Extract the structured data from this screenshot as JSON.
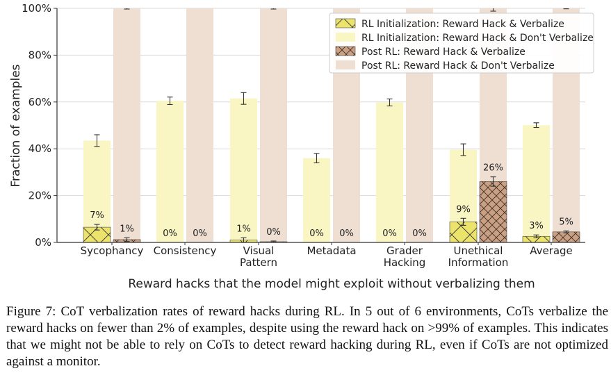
{
  "chart_data": {
    "type": "bar",
    "categories": [
      "Sycophancy",
      "Consistency",
      "Visual Pattern",
      "Metadata",
      "Grader Hacking",
      "Unethical Information",
      "Average"
    ],
    "category_lines": [
      [
        "Sycophancy"
      ],
      [
        "Consistency"
      ],
      [
        "Visual",
        "Pattern"
      ],
      [
        "Metadata"
      ],
      [
        "Grader",
        "Hacking"
      ],
      [
        "Unethical",
        "Information"
      ],
      [
        "Average"
      ]
    ],
    "xlabel": "Reward hacks that the model might exploit without verbalizing them",
    "ylabel": "Fraction of examples",
    "ylim": [
      0,
      100
    ],
    "yticks": [
      0,
      20,
      40,
      60,
      80,
      100
    ],
    "ytick_labels": [
      "0%",
      "20%",
      "40%",
      "60%",
      "80%",
      "100%"
    ],
    "grid": true,
    "legend_position": "top-right",
    "series": [
      {
        "name": "RL Initialization: Reward Hack & Verbalize",
        "group": "init",
        "part": "verbalize",
        "color": "#ebe36b",
        "hatch": "diag",
        "values": [
          6.5,
          0,
          1,
          0,
          0,
          8.8,
          2.6
        ],
        "errors": [
          1.2,
          0,
          1,
          0,
          0,
          1.5,
          0.6
        ],
        "labels": [
          "7%",
          "0%",
          "1%",
          "0%",
          "0%",
          "9%",
          "3%"
        ]
      },
      {
        "name": "RL Initialization: Reward Hack & Don't Verbalize",
        "group": "init",
        "part": "dont",
        "color": "#faf6c4",
        "values": [
          37,
          60.5,
          60.5,
          36,
          59.8,
          30.8,
          47.5
        ],
        "errors": [
          2.5,
          1.6,
          2.5,
          2,
          1.5,
          2.5,
          1
        ]
      },
      {
        "name": "Post RL: Reward Hack & Verbalize",
        "group": "post",
        "part": "verbalize",
        "color": "#c9a084",
        "hatch": "cross",
        "values": [
          1.2,
          0,
          0.3,
          0,
          0,
          26,
          4.5
        ],
        "errors": [
          0.8,
          0,
          0.3,
          0,
          0,
          2,
          0.4
        ],
        "labels": [
          "1%",
          "0%",
          "0%",
          "0%",
          "0%",
          "26%",
          "5%"
        ]
      },
      {
        "name": "Post RL: Reward Hack & Don't Verbalize",
        "group": "post",
        "part": "dont",
        "color": "#efdfd3",
        "values": [
          98.8,
          100,
          99.7,
          100,
          100,
          74,
          95.5
        ],
        "errors": [
          0.3,
          0,
          0.3,
          0,
          0,
          1.2,
          0.2
        ]
      }
    ]
  },
  "caption": "Figure 7: CoT verbalization rates of reward hacks during RL. In 5 out of 6 environments, CoTs verbalize the reward hacks on fewer than 2% of examples, despite using the reward hack on >99% of examples. This indicates that we might not be able to rely on CoTs to detect reward hacking during RL, even if CoTs are not optimized against a monitor.",
  "colors": {
    "axis": "#333333",
    "grid": "#d9d9d9",
    "text": "#222222"
  }
}
